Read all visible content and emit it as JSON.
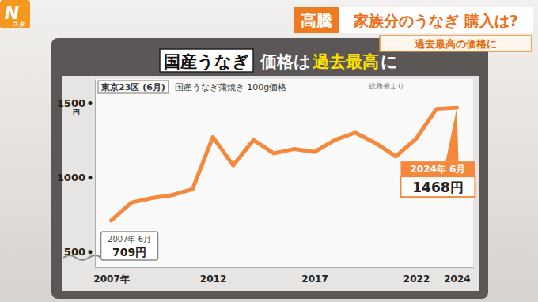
{
  "header": {
    "logo_mark": "N",
    "logo_text": "スタ",
    "tag": "高騰",
    "headline": "家族分のうなぎ 購入は?",
    "subheadline": "過去最高の価格に"
  },
  "chart_data": {
    "type": "line",
    "title_parts": [
      "国産うなぎ",
      "価格は",
      "過去最高",
      "に"
    ],
    "subtitle_tag": "東京23区 (6月)",
    "subtitle": "国産うなぎ蒲焼き 100g価格",
    "source": "総務省より",
    "x": [
      2007,
      2008,
      2009,
      2010,
      2011,
      2012,
      2013,
      2014,
      2015,
      2016,
      2017,
      2018,
      2019,
      2020,
      2021,
      2022,
      2023,
      2024
    ],
    "values": [
      709,
      830,
      860,
      880,
      920,
      1270,
      1080,
      1250,
      1160,
      1190,
      1170,
      1250,
      1300,
      1230,
      1140,
      1260,
      1460,
      1468
    ],
    "color": "#f5883c",
    "xlim": [
      2006.2,
      2024.8
    ],
    "xticks": [
      {
        "value": 2007,
        "label": "2007年"
      },
      2012,
      2017,
      2022,
      2024
    ],
    "ylim": [
      395,
      1660
    ],
    "yticks": [
      500,
      1000,
      1500
    ],
    "y_unit": "円",
    "grid": false,
    "annotations": [
      {
        "x": 2007,
        "y": 709,
        "date": "2007年 6月",
        "text": "709円"
      },
      {
        "x": 2024,
        "y": 1468,
        "date": "2024年 6月",
        "text": "1468円"
      }
    ]
  }
}
